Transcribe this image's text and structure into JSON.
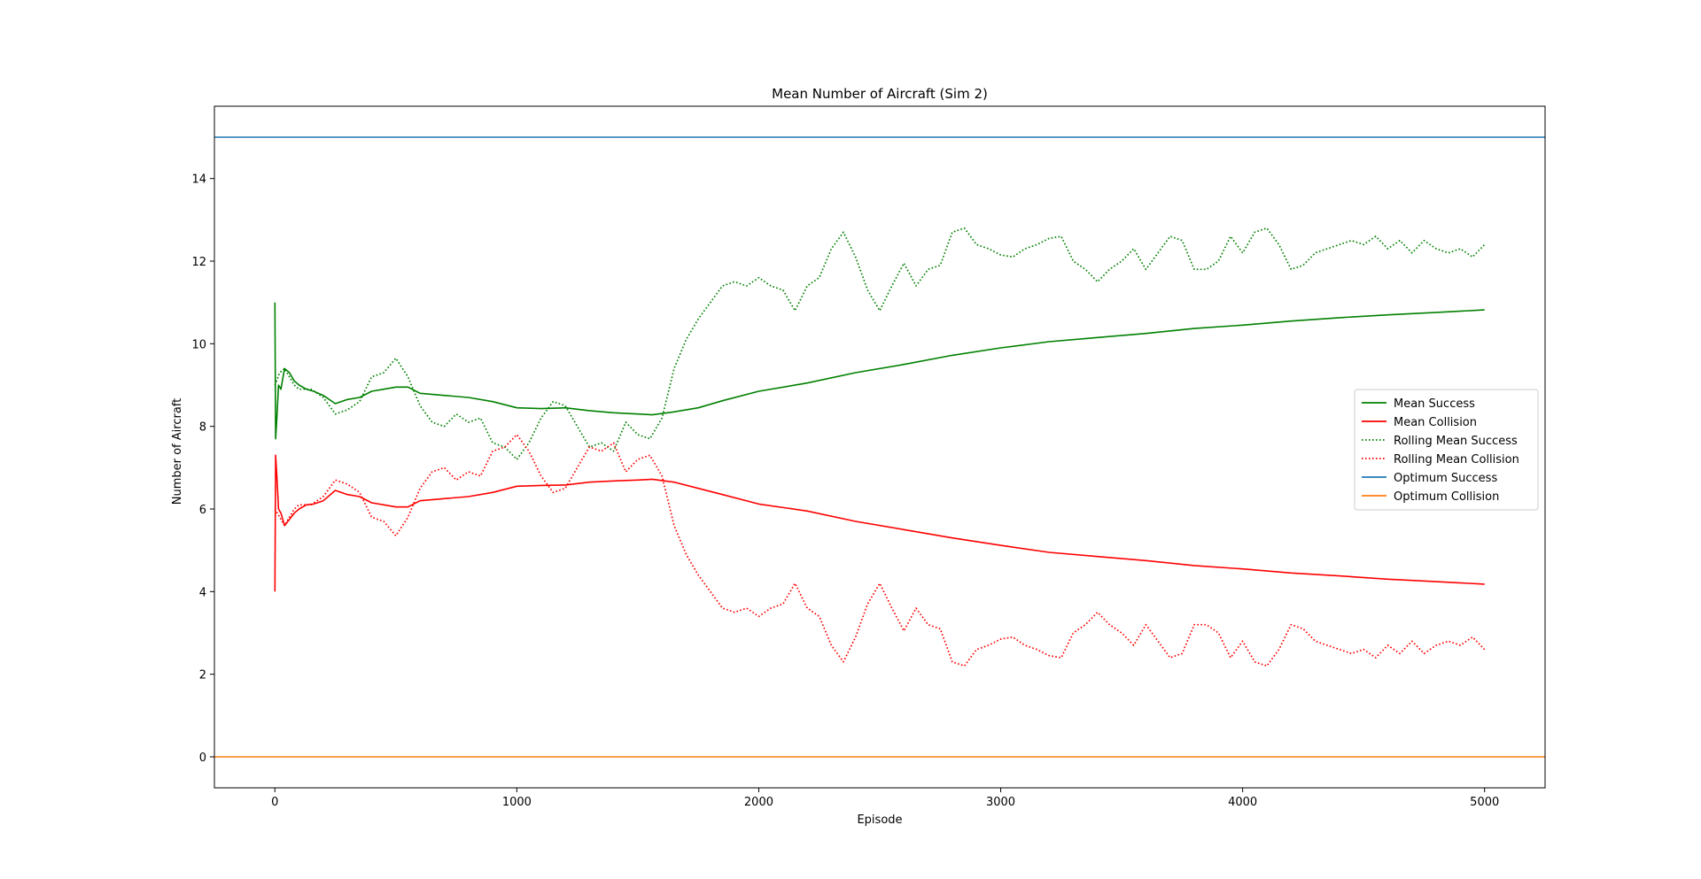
{
  "chart_data": {
    "type": "line",
    "title": "Mean Number of Aircraft (Sim 2)",
    "xlabel": "Episode",
    "ylabel": "Number of Aircraft",
    "xlim": [
      -250,
      5250
    ],
    "ylim": [
      -0.75,
      15.75
    ],
    "xticks": [
      0,
      1000,
      2000,
      3000,
      4000,
      5000
    ],
    "xtick_labels": [
      "0",
      "1000",
      "2000",
      "3000",
      "4000",
      "5000"
    ],
    "yticks": [
      0,
      2,
      4,
      6,
      8,
      10,
      12,
      14
    ],
    "ytick_labels": [
      "0",
      "2",
      "4",
      "6",
      "8",
      "10",
      "12",
      "14"
    ],
    "grid": false,
    "legend_position": "center-right",
    "series": [
      {
        "name": "Mean Success",
        "color": "#008000",
        "style": "solid",
        "x": [
          0,
          3,
          8,
          15,
          25,
          40,
          60,
          80,
          100,
          130,
          160,
          200,
          250,
          300,
          350,
          400,
          450,
          500,
          550,
          600,
          700,
          800,
          900,
          1000,
          1100,
          1200,
          1300,
          1400,
          1500,
          1560,
          1650,
          1750,
          1850,
          2000,
          2200,
          2400,
          2600,
          2800,
          3000,
          3200,
          3400,
          3600,
          3800,
          4000,
          4200,
          4400,
          4600,
          4800,
          5000
        ],
        "y": [
          11.0,
          7.7,
          8.2,
          9.0,
          8.9,
          9.4,
          9.3,
          9.1,
          9.0,
          8.9,
          8.85,
          8.75,
          8.55,
          8.65,
          8.7,
          8.85,
          8.9,
          8.95,
          8.95,
          8.8,
          8.75,
          8.7,
          8.6,
          8.45,
          8.43,
          8.45,
          8.38,
          8.33,
          8.3,
          8.28,
          8.35,
          8.45,
          8.62,
          8.85,
          9.05,
          9.3,
          9.5,
          9.72,
          9.9,
          10.05,
          10.15,
          10.25,
          10.37,
          10.45,
          10.55,
          10.63,
          10.7,
          10.76,
          10.82
        ]
      },
      {
        "name": "Mean Collision",
        "color": "#ff0000",
        "style": "solid",
        "x": [
          0,
          3,
          8,
          15,
          25,
          40,
          60,
          80,
          100,
          130,
          160,
          200,
          250,
          300,
          350,
          400,
          450,
          500,
          550,
          600,
          700,
          800,
          900,
          1000,
          1100,
          1200,
          1300,
          1400,
          1500,
          1560,
          1650,
          1750,
          1850,
          2000,
          2200,
          2400,
          2600,
          2800,
          3000,
          3200,
          3400,
          3600,
          3800,
          4000,
          4200,
          4400,
          4600,
          4800,
          5000
        ],
        "y": [
          4.0,
          7.3,
          6.8,
          6.0,
          5.9,
          5.6,
          5.75,
          5.9,
          6.0,
          6.1,
          6.12,
          6.2,
          6.45,
          6.35,
          6.3,
          6.15,
          6.1,
          6.05,
          6.05,
          6.2,
          6.25,
          6.3,
          6.4,
          6.55,
          6.57,
          6.58,
          6.65,
          6.68,
          6.7,
          6.72,
          6.65,
          6.5,
          6.35,
          6.12,
          5.95,
          5.7,
          5.5,
          5.3,
          5.12,
          4.95,
          4.85,
          4.75,
          4.63,
          4.55,
          4.45,
          4.38,
          4.3,
          4.24,
          4.18
        ]
      },
      {
        "name": "Rolling Mean Success",
        "color": "#008000",
        "style": "dotted",
        "x": [
          0,
          20,
          40,
          60,
          80,
          100,
          150,
          200,
          250,
          300,
          350,
          400,
          450,
          500,
          550,
          600,
          650,
          700,
          750,
          800,
          850,
          900,
          950,
          1000,
          1050,
          1100,
          1150,
          1200,
          1250,
          1300,
          1350,
          1400,
          1450,
          1500,
          1550,
          1600,
          1650,
          1700,
          1750,
          1800,
          1850,
          1900,
          1950,
          2000,
          2050,
          2100,
          2150,
          2200,
          2250,
          2300,
          2350,
          2400,
          2450,
          2500,
          2550,
          2600,
          2650,
          2700,
          2750,
          2800,
          2850,
          2900,
          2950,
          3000,
          3050,
          3100,
          3150,
          3200,
          3250,
          3300,
          3350,
          3400,
          3450,
          3500,
          3550,
          3600,
          3650,
          3700,
          3750,
          3800,
          3850,
          3900,
          3950,
          4000,
          4050,
          4100,
          4150,
          4200,
          4250,
          4300,
          4350,
          4400,
          4450,
          4500,
          4550,
          4600,
          4650,
          4700,
          4750,
          4800,
          4850,
          4900,
          4950,
          5000
        ],
        "y": [
          9.0,
          9.3,
          9.4,
          9.2,
          9.0,
          8.9,
          8.9,
          8.7,
          8.3,
          8.4,
          8.6,
          9.2,
          9.3,
          9.65,
          9.2,
          8.5,
          8.1,
          8.0,
          8.3,
          8.1,
          8.2,
          7.6,
          7.5,
          7.2,
          7.6,
          8.2,
          8.6,
          8.5,
          8.0,
          7.5,
          7.6,
          7.4,
          8.1,
          7.8,
          7.7,
          8.2,
          9.4,
          10.1,
          10.6,
          11.0,
          11.4,
          11.5,
          11.4,
          11.6,
          11.4,
          11.3,
          10.8,
          11.4,
          11.6,
          12.3,
          12.7,
          12.1,
          11.3,
          10.8,
          11.4,
          11.95,
          11.4,
          11.8,
          11.9,
          12.7,
          12.8,
          12.4,
          12.3,
          12.15,
          12.1,
          12.3,
          12.4,
          12.55,
          12.6,
          12.0,
          11.8,
          11.5,
          11.8,
          12.0,
          12.3,
          11.8,
          12.2,
          12.6,
          12.5,
          11.8,
          11.8,
          12.0,
          12.6,
          12.2,
          12.7,
          12.8,
          12.4,
          11.8,
          11.9,
          12.2,
          12.3,
          12.4,
          12.5,
          12.4,
          12.6,
          12.3,
          12.5,
          12.2,
          12.5,
          12.3,
          12.2,
          12.3,
          12.1,
          12.4
        ]
      },
      {
        "name": "Rolling Mean Collision",
        "color": "#ff0000",
        "style": "dotted",
        "x": [
          0,
          20,
          40,
          60,
          80,
          100,
          150,
          200,
          250,
          300,
          350,
          400,
          450,
          500,
          550,
          600,
          650,
          700,
          750,
          800,
          850,
          900,
          950,
          1000,
          1050,
          1100,
          1150,
          1200,
          1250,
          1300,
          1350,
          1400,
          1450,
          1500,
          1550,
          1600,
          1650,
          1700,
          1750,
          1800,
          1850,
          1900,
          1950,
          2000,
          2050,
          2100,
          2150,
          2200,
          2250,
          2300,
          2350,
          2400,
          2450,
          2500,
          2550,
          2600,
          2650,
          2700,
          2750,
          2800,
          2850,
          2900,
          2950,
          3000,
          3050,
          3100,
          3150,
          3200,
          3250,
          3300,
          3350,
          3400,
          3450,
          3500,
          3550,
          3600,
          3650,
          3700,
          3750,
          3800,
          3850,
          3900,
          3950,
          4000,
          4050,
          4100,
          4150,
          4200,
          4250,
          4300,
          4350,
          4400,
          4450,
          4500,
          4550,
          4600,
          4650,
          4700,
          4750,
          4800,
          4850,
          4900,
          4950,
          5000
        ],
        "y": [
          6.0,
          5.8,
          5.6,
          5.8,
          6.0,
          6.1,
          6.1,
          6.3,
          6.7,
          6.6,
          6.4,
          5.8,
          5.7,
          5.35,
          5.8,
          6.5,
          6.9,
          7.0,
          6.7,
          6.9,
          6.8,
          7.4,
          7.5,
          7.8,
          7.4,
          6.8,
          6.4,
          6.5,
          7.0,
          7.5,
          7.4,
          7.6,
          6.9,
          7.2,
          7.3,
          6.8,
          5.6,
          4.9,
          4.4,
          4.0,
          3.6,
          3.5,
          3.6,
          3.4,
          3.6,
          3.7,
          4.2,
          3.6,
          3.4,
          2.7,
          2.3,
          2.9,
          3.7,
          4.2,
          3.6,
          3.05,
          3.6,
          3.2,
          3.1,
          2.3,
          2.2,
          2.6,
          2.7,
          2.85,
          2.9,
          2.7,
          2.6,
          2.45,
          2.4,
          3.0,
          3.2,
          3.5,
          3.2,
          3.0,
          2.7,
          3.2,
          2.8,
          2.4,
          2.5,
          3.2,
          3.2,
          3.0,
          2.4,
          2.8,
          2.3,
          2.2,
          2.6,
          3.2,
          3.1,
          2.8,
          2.7,
          2.6,
          2.5,
          2.6,
          2.4,
          2.7,
          2.5,
          2.8,
          2.5,
          2.7,
          2.8,
          2.7,
          2.9,
          2.6
        ]
      },
      {
        "name": "Optimum Success",
        "color": "#1f77b4",
        "style": "solid",
        "hline": 15
      },
      {
        "name": "Optimum Collision",
        "color": "#ff7f0e",
        "style": "solid",
        "hline": 0
      }
    ]
  }
}
